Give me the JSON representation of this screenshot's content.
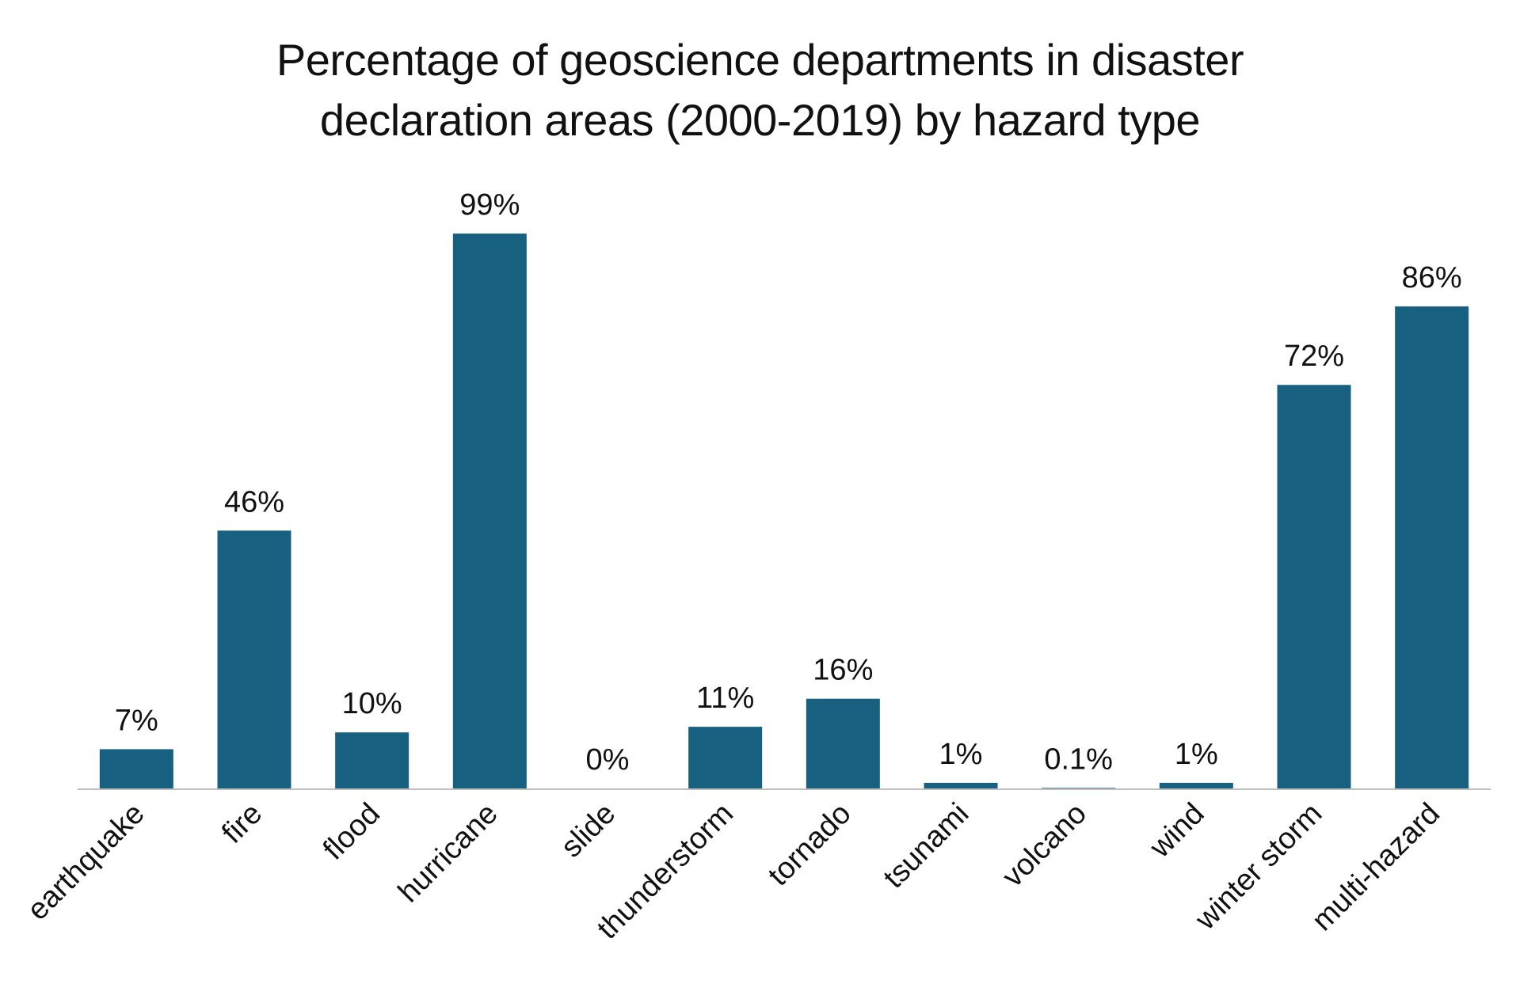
{
  "title_lines": [
    "Percentage of geoscience departments in disaster",
    "declaration areas (2000-2019) by hazard type"
  ],
  "colors": {
    "bar": "#17607f",
    "axis": "#bfbfbf",
    "text": "#111111"
  },
  "chart_data": {
    "type": "bar",
    "title": "Percentage of geoscience departments in disaster declaration areas (2000-2019) by hazard type",
    "xlabel": "",
    "ylabel": "",
    "ylim": [
      0,
      100
    ],
    "grid": false,
    "categories": [
      "earthquake",
      "fire",
      "flood",
      "hurricane",
      "slide",
      "thunderstorm",
      "tornado",
      "tsunami",
      "volcano",
      "wind",
      "winter storm",
      "multi-hazard"
    ],
    "values": [
      7,
      46,
      10,
      99,
      0,
      11,
      16,
      1,
      0.1,
      1,
      72,
      86
    ],
    "data_labels": [
      "7%",
      "46%",
      "10%",
      "99%",
      "0%",
      "11%",
      "16%",
      "1%",
      "0.1%",
      "1%",
      "72%",
      "86%"
    ]
  }
}
